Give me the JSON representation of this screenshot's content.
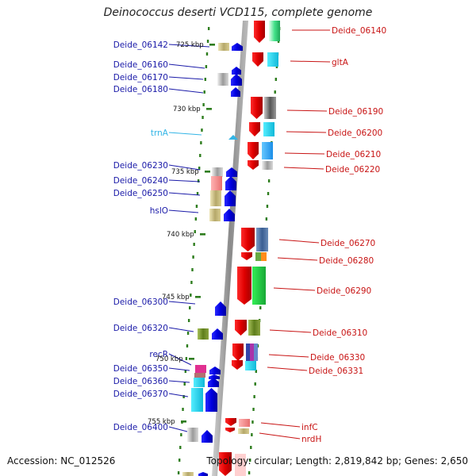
{
  "title": "Deinococcus deserti VCD115, complete genome",
  "accession": "Accession: NC_012526",
  "topology": "Topology: circular; Length: 2,819,842 bp; Genes: 2,650",
  "colors": {
    "backbone": "#9a9a9a",
    "tick": "#2e7d1e",
    "left_label": "#1a1aa8",
    "right_label": "#c81414",
    "trna_label": "#33b5e6"
  },
  "kbp_markers": [
    "725 kbp",
    "730 kbp",
    "735 kbp",
    "740 kbp",
    "745 kbp",
    "750 kbp",
    "755 kbp"
  ],
  "left_genes": [
    {
      "label": "Deide_06142"
    },
    {
      "label": "Deide_06160"
    },
    {
      "label": "Deide_06170"
    },
    {
      "label": "Deide_06180"
    },
    {
      "label": "trnA",
      "type": "tRNA"
    },
    {
      "label": "Deide_06230"
    },
    {
      "label": "Deide_06240"
    },
    {
      "label": "Deide_06250"
    },
    {
      "label": "hslO"
    },
    {
      "label": "Deide_06300"
    },
    {
      "label": "Deide_06320"
    },
    {
      "label": "recR"
    },
    {
      "label": "Deide_06350"
    },
    {
      "label": "Deide_06360"
    },
    {
      "label": "Deide_06370"
    },
    {
      "label": "Deide_06400"
    }
  ],
  "right_genes": [
    {
      "label": "Deide_06140"
    },
    {
      "label": "gltA"
    },
    {
      "label": "Deide_06190"
    },
    {
      "label": "Deide_06200"
    },
    {
      "label": "Deide_06210"
    },
    {
      "label": "Deide_06220"
    },
    {
      "label": "Deide_06270"
    },
    {
      "label": "Deide_06280"
    },
    {
      "label": "Deide_06290"
    },
    {
      "label": "Deide_06310"
    },
    {
      "label": "Deide_06330"
    },
    {
      "label": "Deide_06331"
    },
    {
      "label": "infC"
    },
    {
      "label": "nrdH"
    }
  ]
}
